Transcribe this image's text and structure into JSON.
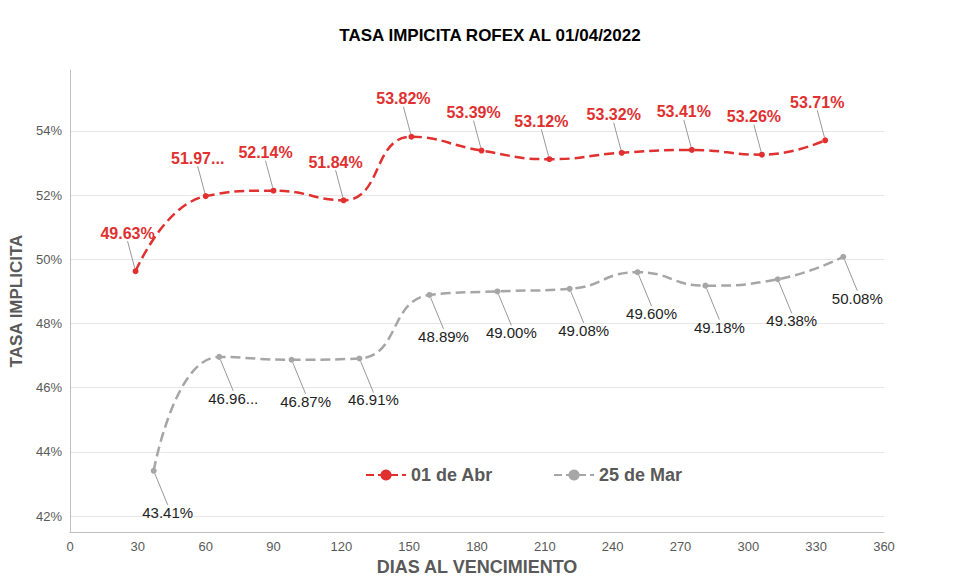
{
  "chart_data": {
    "type": "line",
    "title": "TASA IMPICITA ROFEX AL 01/04/2022",
    "x_label": "DIAS AL VENCIMIENTO",
    "y_label": "TASA IMPLICITA",
    "xlim": [
      0,
      360
    ],
    "xticks": [
      0,
      30,
      60,
      90,
      120,
      150,
      180,
      210,
      240,
      270,
      300,
      330,
      360
    ],
    "ylim": [
      41.5,
      55.9
    ],
    "yticks": [
      {
        "value": 42,
        "label": "42%"
      },
      {
        "value": 44,
        "label": "44%"
      },
      {
        "value": 46,
        "label": "46%"
      },
      {
        "value": 48,
        "label": "48%"
      },
      {
        "value": 50,
        "label": "50%"
      },
      {
        "value": 52,
        "label": "52%"
      },
      {
        "value": 54,
        "label": "54%"
      }
    ],
    "grid": true,
    "legend": "bottom",
    "data_labels": true,
    "series": [
      {
        "name": "01 de Abr",
        "color": "#e03030",
        "marker": "circle",
        "line_style": "dashed",
        "x": [
          29,
          60,
          90,
          121,
          151,
          182,
          212,
          244,
          275,
          306,
          334
        ],
        "values": [
          49.63,
          51.97,
          52.14,
          51.84,
          53.82,
          53.39,
          53.12,
          53.32,
          53.41,
          53.26,
          53.71
        ],
        "value_labels": [
          "49.63%",
          "51.97...",
          "52.14%",
          "51.84%",
          "53.82%",
          "53.39%",
          "53.12%",
          "53.32%",
          "53.41%",
          "53.26%",
          "53.71%"
        ]
      },
      {
        "name": "25 de Mar",
        "color": "#a6a6a6",
        "marker": "circle",
        "line_style": "dashed",
        "x": [
          37,
          66,
          98,
          128,
          159,
          189,
          221,
          251,
          281,
          313,
          342
        ],
        "values": [
          43.41,
          46.96,
          46.87,
          46.91,
          48.89,
          49.0,
          49.08,
          49.6,
          49.18,
          49.38,
          50.08
        ],
        "value_labels": [
          "43.41%",
          "46.96...",
          "46.87%",
          "46.91%",
          "48.89%",
          "49.00%",
          "49.08%",
          "49.60%",
          "49.18%",
          "49.38%",
          "50.08%"
        ]
      }
    ]
  }
}
